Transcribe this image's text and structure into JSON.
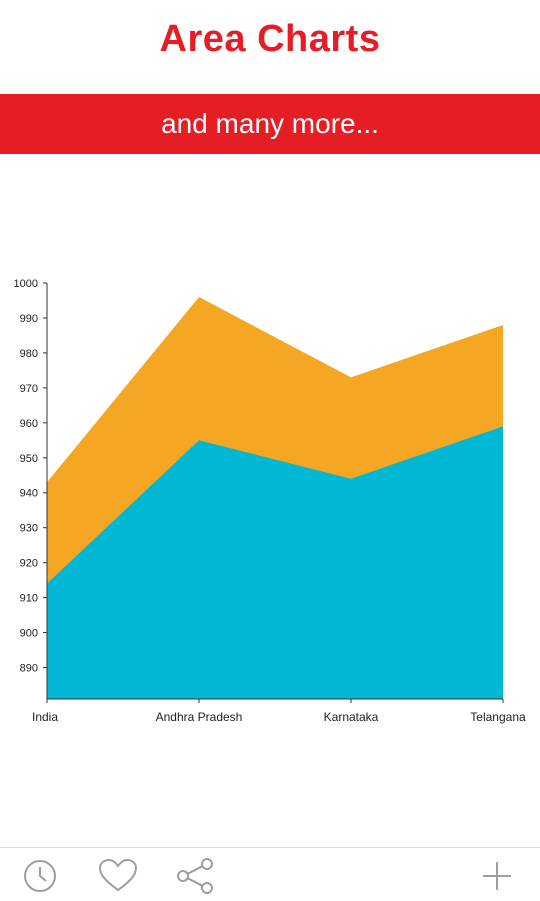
{
  "header": {
    "title": "Area Charts",
    "subtitle": "and many more..."
  },
  "colors": {
    "accent": "#e51e25",
    "series_top": "#f5a623",
    "series_bottom": "#00b8d4",
    "icon_gray": "#9e9e9e"
  },
  "chart_data": {
    "type": "area",
    "stacked": false,
    "categories": [
      "India",
      "Andhra Pradesh",
      "Karnataka",
      "Telangana"
    ],
    "series": [
      {
        "color": "#f5a623",
        "values": [
          943,
          996,
          973,
          988
        ]
      },
      {
        "color": "#00b8d4",
        "values": [
          914,
          955,
          944,
          959
        ]
      }
    ],
    "ylim": [
      881,
      1000
    ],
    "yticks": [
      890,
      900,
      910,
      920,
      930,
      940,
      950,
      960,
      970,
      980,
      990,
      1000
    ],
    "grid": false,
    "legend": "none"
  },
  "bottom_nav": {
    "items": [
      "clock-icon",
      "heart-icon",
      "share-icon",
      "add-icon"
    ]
  }
}
